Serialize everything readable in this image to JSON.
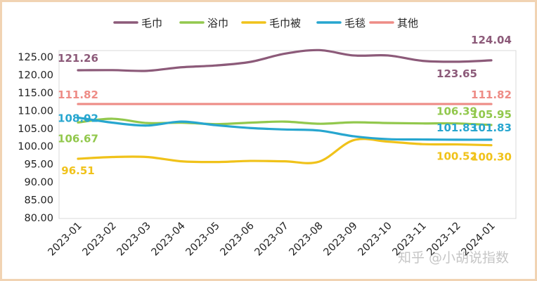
{
  "chart_data": {
    "type": "line",
    "categories": [
      "2023-01",
      "2023-02",
      "2023-03",
      "2023-04",
      "2023-05",
      "2023-06",
      "2023-07",
      "2023-08",
      "2023-09",
      "2023-10",
      "2023-11",
      "2023-12",
      "2024-01"
    ],
    "ylim": [
      80,
      125
    ],
    "yticks": [
      "80.00",
      "85.00",
      "90.00",
      "95.00",
      "100.00",
      "105.00",
      "110.00",
      "115.00",
      "120.00",
      "125.00"
    ],
    "legend_position": "top",
    "grid": false,
    "series": [
      {
        "name": "毛巾",
        "color": "#8c5a79",
        "values": [
          121.26,
          121.3,
          121.1,
          122.1,
          122.6,
          123.6,
          125.9,
          126.9,
          125.4,
          125.4,
          123.9,
          123.65,
          124.04
        ],
        "labels": [
          {
            "i": 0,
            "text": "121.26"
          },
          {
            "i": 11,
            "text": "123.65"
          },
          {
            "i": 12,
            "text": "124.04"
          }
        ]
      },
      {
        "name": "浴巾",
        "color": "#92c84d",
        "values": [
          106.67,
          107.7,
          106.5,
          106.6,
          106.2,
          106.6,
          106.9,
          106.3,
          106.7,
          106.5,
          106.39,
          106.39,
          105.95
        ],
        "labels": [
          {
            "i": 0,
            "text": "106.67"
          },
          {
            "i": 11,
            "text": "106.39"
          },
          {
            "i": 12,
            "text": "105.95"
          }
        ]
      },
      {
        "name": "毛巾被",
        "color": "#f0c21a",
        "values": [
          96.51,
          97.0,
          97.0,
          95.8,
          95.6,
          95.9,
          95.8,
          95.7,
          101.7,
          101.3,
          100.6,
          100.52,
          100.3
        ],
        "labels": [
          {
            "i": 0,
            "text": "96.51"
          },
          {
            "i": 11,
            "text": "100.52"
          },
          {
            "i": 12,
            "text": "100.30"
          }
        ]
      },
      {
        "name": "毛毯",
        "color": "#27a6cf",
        "values": [
          108.02,
          106.6,
          105.8,
          106.9,
          105.9,
          105.1,
          104.7,
          104.4,
          102.8,
          102.0,
          101.9,
          101.83,
          101.83
        ],
        "labels": [
          {
            "i": 0,
            "text": "108.02"
          },
          {
            "i": 11,
            "text": "101.83"
          },
          {
            "i": 12,
            "text": "101.83"
          }
        ]
      },
      {
        "name": "其他",
        "color": "#ee8c86",
        "values": [
          111.82,
          111.82,
          111.82,
          111.82,
          111.82,
          111.82,
          111.82,
          111.82,
          111.82,
          111.82,
          111.82,
          111.82,
          111.82
        ],
        "labels": [
          {
            "i": 0,
            "text": "111.82"
          },
          {
            "i": 12,
            "text": "111.82"
          }
        ]
      }
    ]
  },
  "watermark": "知乎 @小胡说指数"
}
